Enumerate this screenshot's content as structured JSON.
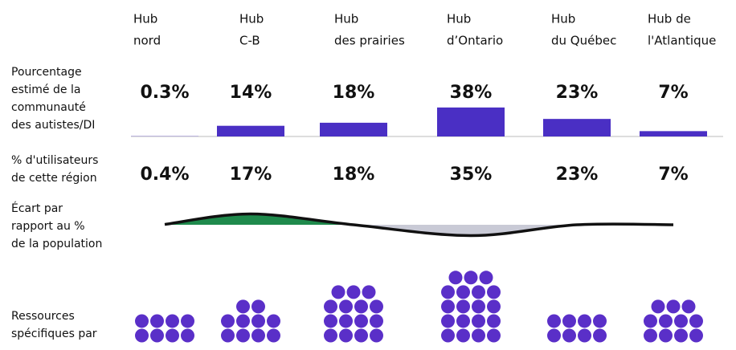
{
  "hubs": [
    [
      "Hub",
      "nord"
    ],
    [
      "Hub",
      "C-B"
    ],
    [
      "Hub",
      "des prairies"
    ],
    [
      "Hub",
      "d’Ontario"
    ],
    [
      "Hub",
      "du Québec"
    ],
    [
      "Hub de",
      "l'Atlantique"
    ]
  ],
  "rows": [
    {
      "label": [
        "Pourcentage",
        "estimé de la",
        "communauté",
        "des autistes/DI"
      ],
      "values": [
        0.3,
        14,
        18,
        38,
        23,
        7
      ],
      "value_labels": [
        "0.3%",
        "14%",
        "18%",
        "38%",
        "23%",
        "7%"
      ],
      "color": "#4a2fc4"
    },
    {
      "label": [
        "% d'utilisateurs",
        "de cette région"
      ],
      "values": [
        0.4,
        17,
        18,
        35,
        23,
        7
      ],
      "value_labels": [
        "0.4%",
        "17%",
        "18%",
        "35%",
        "23%",
        "7%"
      ]
    }
  ],
  "gap": {
    "label": [
      "Écart par",
      "rapport au %",
      "de la population"
    ],
    "above_color": "#1f8a4c",
    "below_color": "#c9cad6"
  },
  "resources": {
    "label": [
      "Ressources",
      "spécifiques par"
    ],
    "values": [
      8,
      10,
      15,
      19,
      8,
      11
    ],
    "color": "#5a2fc8"
  }
}
